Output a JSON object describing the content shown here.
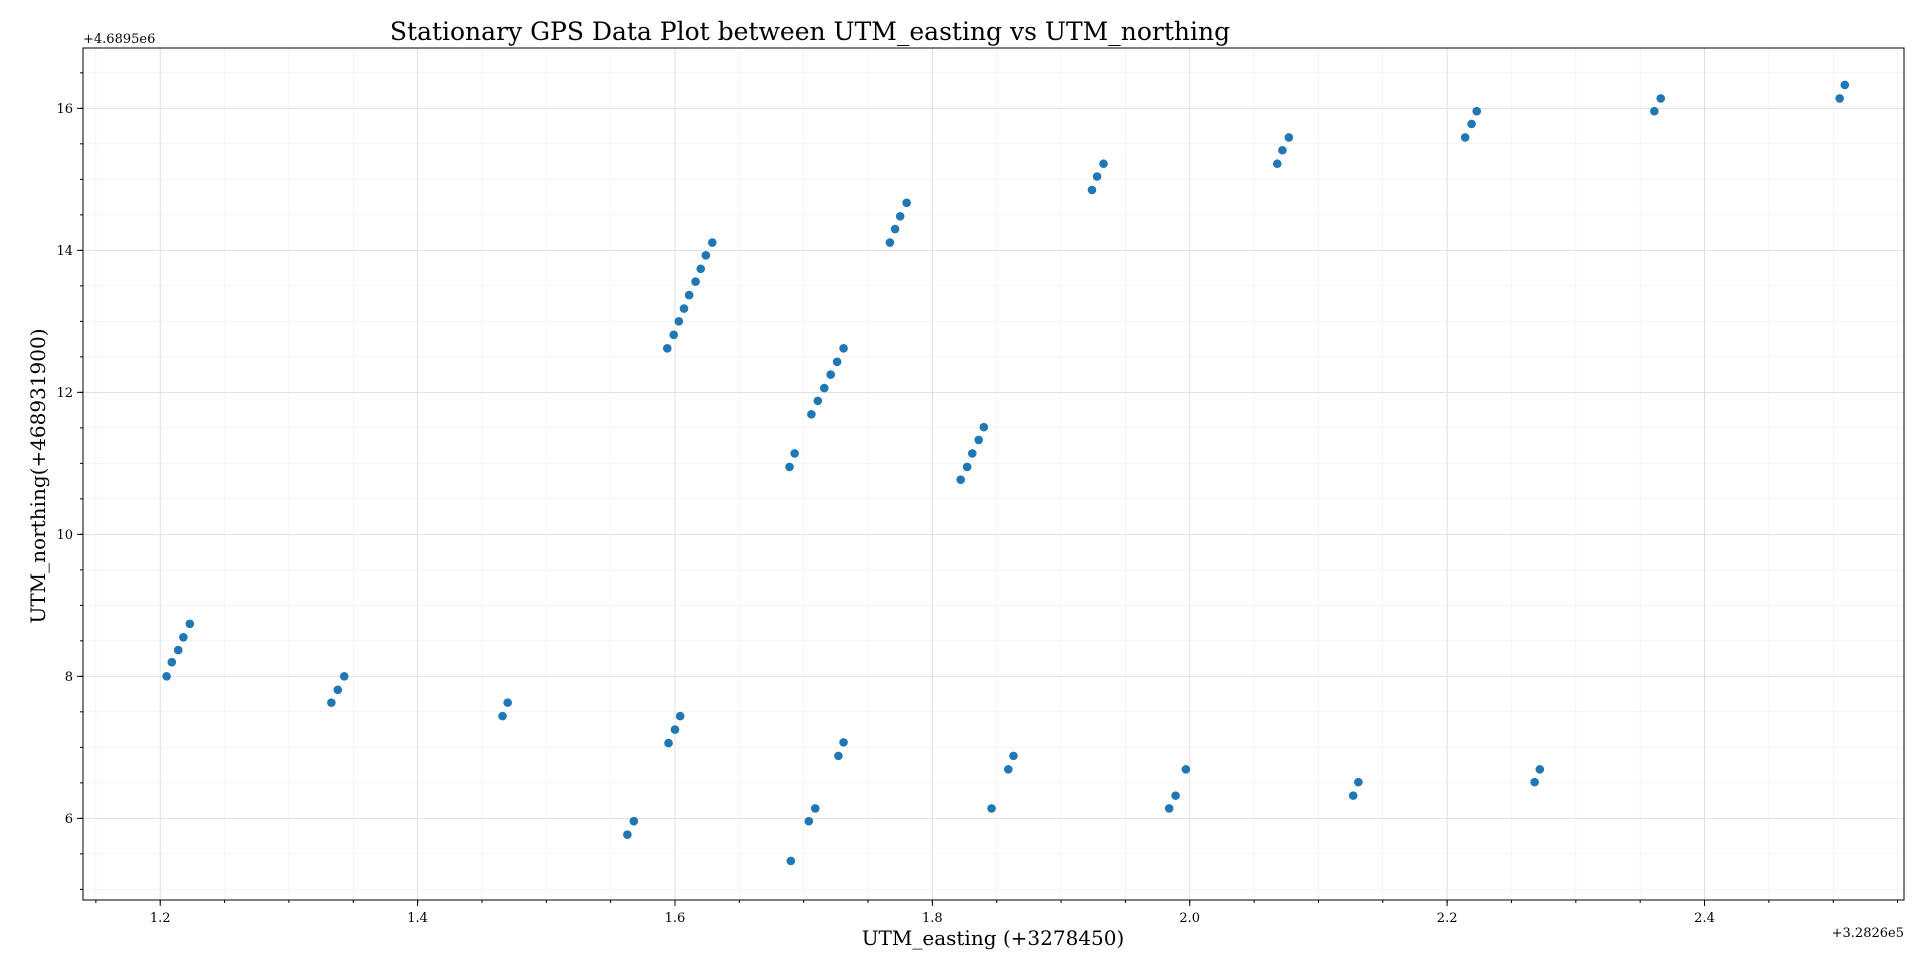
{
  "chart_data": {
    "type": "scatter",
    "title": "Stationary GPS Data Plot between UTM_easting vs UTM_northing",
    "xlabel": "UTM_easting (+3278450)",
    "ylabel": "UTM_northing(+468931900)",
    "x_offset_label": "+3.2826e5",
    "y_offset_label": "+4.6895e6",
    "xlim": [
      1.14,
      2.555
    ],
    "ylim": [
      4.85,
      16.85
    ],
    "xticks": [
      1.2,
      1.4,
      1.6,
      1.8,
      2.0,
      2.2,
      2.4
    ],
    "xtick_labels": [
      "1.2",
      "1.4",
      "1.6",
      "1.8",
      "2.0",
      "2.2",
      "2.4"
    ],
    "yticks": [
      6,
      8,
      10,
      12,
      14,
      16
    ],
    "ytick_labels": [
      "6",
      "8",
      "10",
      "12",
      "14",
      "16"
    ],
    "grid": true,
    "marker_color": "#1f77b4",
    "series": [
      {
        "x": [
          1.205,
          1.209,
          1.214,
          1.218,
          1.223,
          1.333,
          1.338,
          1.343,
          1.466,
          1.47,
          1.563,
          1.568,
          1.595,
          1.6,
          1.604,
          1.594,
          1.599,
          1.603,
          1.607,
          1.611,
          1.616,
          1.62,
          1.624,
          1.629,
          1.689,
          1.693,
          1.706,
          1.711,
          1.716,
          1.721,
          1.726,
          1.731,
          1.69,
          1.704,
          1.709,
          1.727,
          1.731,
          1.767,
          1.771,
          1.775,
          1.78,
          1.822,
          1.827,
          1.831,
          1.836,
          1.84,
          1.846,
          1.859,
          1.863,
          1.924,
          1.928,
          1.933,
          1.984,
          1.989,
          1.997,
          2.068,
          2.072,
          2.077,
          2.127,
          2.131,
          2.214,
          2.219,
          2.223,
          2.268,
          2.272,
          2.361,
          2.366,
          2.505,
          2.509
        ],
        "y": [
          8.0,
          8.2,
          8.37,
          8.55,
          8.74,
          7.63,
          7.81,
          8.0,
          7.44,
          7.63,
          5.77,
          5.96,
          7.06,
          7.25,
          7.44,
          12.62,
          12.81,
          13.0,
          13.18,
          13.37,
          13.56,
          13.74,
          13.93,
          14.11,
          10.95,
          11.14,
          11.69,
          11.88,
          12.06,
          12.25,
          12.43,
          12.62,
          5.4,
          5.96,
          6.14,
          6.88,
          7.07,
          14.11,
          14.3,
          14.48,
          14.67,
          10.77,
          10.95,
          11.14,
          11.33,
          11.51,
          6.14,
          6.69,
          6.88,
          14.85,
          15.04,
          15.22,
          6.14,
          6.32,
          6.69,
          15.22,
          15.41,
          15.59,
          6.32,
          6.51,
          15.59,
          15.78,
          15.96,
          6.51,
          6.69,
          15.96,
          16.14,
          16.14,
          16.33
        ]
      }
    ]
  }
}
